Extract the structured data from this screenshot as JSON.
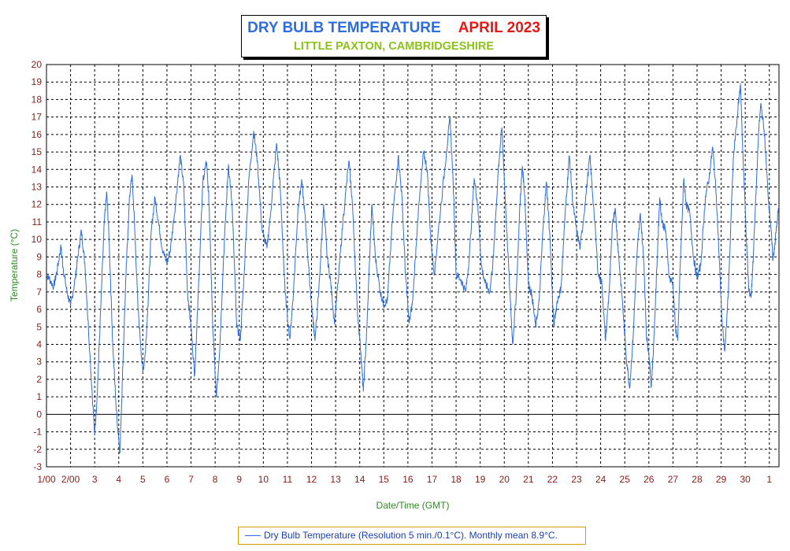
{
  "title": {
    "main": "DRY BULB TEMPERATURE",
    "date": "APRIL 2023",
    "location": "LITTLE PAXTON, CAMBRIDGESHIRE"
  },
  "colors": {
    "series": "#2f6ce0",
    "title_main": "#2f6ce0",
    "title_date": "#e81818",
    "location": "#8cc21a",
    "tick_labels": "#8b1a1a",
    "axis_titles": "#2e8b22",
    "legend_border": "#d4a000"
  },
  "legend": {
    "text": "Dry Bulb Temperature (Resolution 5 min./0.1°C). Monthly mean 8.9°C."
  },
  "chart_data": {
    "type": "line",
    "title": "DRY BULB TEMPERATURE APRIL 2023",
    "subtitle": "LITTLE PAXTON, CAMBRIDGESHIRE",
    "xlabel": "Date/Time (GMT)",
    "ylabel": "Temperature (°C)",
    "ylim": [
      -3,
      20
    ],
    "xlim": [
      1.0,
      31.4
    ],
    "grid": true,
    "y_ticks": [
      -3,
      -2,
      -1,
      0,
      1,
      2,
      3,
      4,
      5,
      6,
      7,
      8,
      9,
      10,
      11,
      12,
      13,
      14,
      15,
      16,
      17,
      18,
      19,
      20
    ],
    "x_ticks": [
      {
        "day": 1,
        "label": "1/00"
      },
      {
        "day": 2,
        "label": "2/00"
      },
      {
        "day": 3,
        "label": "3"
      },
      {
        "day": 4,
        "label": "4"
      },
      {
        "day": 5,
        "label": "5"
      },
      {
        "day": 6,
        "label": "6"
      },
      {
        "day": 7,
        "label": "7"
      },
      {
        "day": 8,
        "label": "8"
      },
      {
        "day": 9,
        "label": "9"
      },
      {
        "day": 10,
        "label": "10"
      },
      {
        "day": 11,
        "label": "11"
      },
      {
        "day": 12,
        "label": "12"
      },
      {
        "day": 13,
        "label": "13"
      },
      {
        "day": 14,
        "label": "14"
      },
      {
        "day": 15,
        "label": "15"
      },
      {
        "day": 16,
        "label": "16"
      },
      {
        "day": 17,
        "label": "17"
      },
      {
        "day": 18,
        "label": "18"
      },
      {
        "day": 19,
        "label": "19"
      },
      {
        "day": 20,
        "label": "20"
      },
      {
        "day": 21,
        "label": "21"
      },
      {
        "day": 22,
        "label": "22"
      },
      {
        "day": 23,
        "label": "23"
      },
      {
        "day": 24,
        "label": "24"
      },
      {
        "day": 25,
        "label": "25"
      },
      {
        "day": 26,
        "label": "26"
      },
      {
        "day": 27,
        "label": "27"
      },
      {
        "day": 28,
        "label": "28"
      },
      {
        "day": 29,
        "label": "29"
      },
      {
        "day": 30,
        "label": "30"
      },
      {
        "day": 31,
        "label": "1"
      }
    ],
    "series": [
      {
        "name": "Dry Bulb Temperature (Resolution 5 min./0.1°C). Monthly mean 8.9°C.",
        "color": "#2f6ce0",
        "points": [
          [
            1.0,
            8.0
          ],
          [
            1.1,
            7.8
          ],
          [
            1.3,
            7.3
          ],
          [
            1.45,
            8.3
          ],
          [
            1.6,
            9.6
          ],
          [
            1.7,
            8.3
          ],
          [
            1.85,
            7.0
          ],
          [
            2.0,
            6.2
          ],
          [
            2.2,
            7.8
          ],
          [
            2.3,
            9.0
          ],
          [
            2.45,
            10.5
          ],
          [
            2.6,
            8.5
          ],
          [
            2.8,
            3.5
          ],
          [
            3.0,
            -1.2
          ],
          [
            3.1,
            1.0
          ],
          [
            3.25,
            6.0
          ],
          [
            3.4,
            11.0
          ],
          [
            3.5,
            12.7
          ],
          [
            3.6,
            10.0
          ],
          [
            3.75,
            4.0
          ],
          [
            3.9,
            0.2
          ],
          [
            4.05,
            -2.2
          ],
          [
            4.15,
            2.0
          ],
          [
            4.3,
            8.0
          ],
          [
            4.45,
            12.5
          ],
          [
            4.55,
            13.7
          ],
          [
            4.65,
            11.0
          ],
          [
            4.8,
            6.0
          ],
          [
            5.0,
            2.4
          ],
          [
            5.1,
            3.5
          ],
          [
            5.2,
            6.0
          ],
          [
            5.35,
            10.5
          ],
          [
            5.5,
            12.4
          ],
          [
            5.65,
            11.0
          ],
          [
            5.8,
            9.5
          ],
          [
            6.0,
            8.6
          ],
          [
            6.15,
            9.5
          ],
          [
            6.35,
            12.0
          ],
          [
            6.55,
            14.8
          ],
          [
            6.7,
            13.0
          ],
          [
            6.85,
            7.0
          ],
          [
            7.0,
            5.0
          ],
          [
            7.15,
            2.2
          ],
          [
            7.3,
            7.0
          ],
          [
            7.5,
            13.5
          ],
          [
            7.65,
            14.4
          ],
          [
            7.75,
            12.0
          ],
          [
            7.9,
            5.0
          ],
          [
            8.05,
            1.0
          ],
          [
            8.2,
            4.0
          ],
          [
            8.35,
            9.0
          ],
          [
            8.55,
            14.3
          ],
          [
            8.7,
            12.0
          ],
          [
            8.9,
            5.0
          ],
          [
            9.05,
            4.3
          ],
          [
            9.2,
            8.0
          ],
          [
            9.4,
            13.5
          ],
          [
            9.6,
            16.2
          ],
          [
            9.75,
            14.5
          ],
          [
            9.95,
            10.5
          ],
          [
            10.15,
            9.5
          ],
          [
            10.3,
            11.5
          ],
          [
            10.55,
            15.5
          ],
          [
            10.7,
            13.0
          ],
          [
            10.9,
            7.0
          ],
          [
            11.1,
            4.3
          ],
          [
            11.25,
            7.0
          ],
          [
            11.45,
            12.0
          ],
          [
            11.6,
            13.3
          ],
          [
            11.75,
            11.0
          ],
          [
            11.9,
            8.0
          ],
          [
            12.05,
            5.5
          ],
          [
            12.15,
            4.3
          ],
          [
            12.3,
            7.0
          ],
          [
            12.5,
            12.0
          ],
          [
            12.65,
            9.0
          ],
          [
            12.8,
            7.5
          ],
          [
            12.95,
            5.2
          ],
          [
            13.1,
            7.5
          ],
          [
            13.3,
            11.0
          ],
          [
            13.55,
            14.5
          ],
          [
            13.7,
            12.0
          ],
          [
            13.9,
            6.0
          ],
          [
            14.05,
            3.5
          ],
          [
            14.15,
            1.3
          ],
          [
            14.3,
            5.0
          ],
          [
            14.5,
            12.0
          ],
          [
            14.65,
            9.0
          ],
          [
            14.85,
            7.0
          ],
          [
            15.0,
            6.3
          ],
          [
            15.15,
            6.5
          ],
          [
            15.35,
            11.0
          ],
          [
            15.6,
            14.8
          ],
          [
            15.75,
            12.5
          ],
          [
            15.9,
            8.0
          ],
          [
            16.05,
            5.2
          ],
          [
            16.2,
            6.5
          ],
          [
            16.4,
            11.0
          ],
          [
            16.65,
            15.0
          ],
          [
            16.8,
            14.0
          ],
          [
            16.95,
            10.0
          ],
          [
            17.1,
            8.0
          ],
          [
            17.3,
            11.0
          ],
          [
            17.6,
            15.0
          ],
          [
            17.75,
            17.0
          ],
          [
            17.9,
            12.5
          ],
          [
            18.0,
            8.0
          ],
          [
            18.2,
            7.7
          ],
          [
            18.4,
            7.0
          ],
          [
            18.55,
            9.0
          ],
          [
            18.75,
            13.5
          ],
          [
            18.9,
            12.0
          ],
          [
            19.05,
            8.5
          ],
          [
            19.2,
            7.5
          ],
          [
            19.4,
            7.0
          ],
          [
            19.55,
            9.0
          ],
          [
            19.75,
            14.0
          ],
          [
            19.9,
            16.4
          ],
          [
            20.05,
            12.0
          ],
          [
            20.25,
            6.5
          ],
          [
            20.35,
            4.0
          ],
          [
            20.5,
            7.0
          ],
          [
            20.65,
            12.0
          ],
          [
            20.75,
            14.2
          ],
          [
            20.85,
            12.5
          ],
          [
            21.0,
            7.5
          ],
          [
            21.15,
            6.8
          ],
          [
            21.3,
            5.0
          ],
          [
            21.45,
            6.5
          ],
          [
            21.6,
            10.5
          ],
          [
            21.75,
            13.3
          ],
          [
            21.9,
            10.0
          ],
          [
            22.05,
            5.0
          ],
          [
            22.2,
            6.5
          ],
          [
            22.35,
            7.2
          ],
          [
            22.55,
            12.0
          ],
          [
            22.7,
            14.8
          ],
          [
            22.85,
            12.0
          ],
          [
            23.0,
            10.5
          ],
          [
            23.15,
            9.5
          ],
          [
            23.35,
            12.0
          ],
          [
            23.55,
            14.8
          ],
          [
            23.7,
            12.0
          ],
          [
            23.9,
            8.0
          ],
          [
            24.05,
            7.5
          ],
          [
            24.2,
            4.2
          ],
          [
            24.35,
            7.0
          ],
          [
            24.5,
            11.0
          ],
          [
            24.6,
            11.8
          ],
          [
            24.75,
            9.0
          ],
          [
            24.9,
            6.5
          ],
          [
            25.05,
            3.5
          ],
          [
            25.2,
            1.5
          ],
          [
            25.35,
            4.5
          ],
          [
            25.5,
            9.0
          ],
          [
            25.65,
            11.5
          ],
          [
            25.8,
            8.5
          ],
          [
            25.9,
            4.5
          ],
          [
            26.0,
            3.5
          ],
          [
            26.1,
            1.6
          ],
          [
            26.2,
            4.0
          ],
          [
            26.35,
            9.0
          ],
          [
            26.45,
            12.4
          ],
          [
            26.55,
            11.0
          ],
          [
            26.7,
            10.5
          ],
          [
            26.85,
            7.8
          ],
          [
            27.0,
            7.5
          ],
          [
            27.1,
            5.0
          ],
          [
            27.2,
            4.2
          ],
          [
            27.3,
            8.5
          ],
          [
            27.45,
            13.5
          ],
          [
            27.55,
            12.0
          ],
          [
            27.7,
            11.5
          ],
          [
            27.85,
            9.0
          ],
          [
            28.0,
            7.8
          ],
          [
            28.15,
            8.5
          ],
          [
            28.35,
            12.5
          ],
          [
            28.5,
            13.5
          ],
          [
            28.65,
            15.3
          ],
          [
            28.8,
            12.5
          ],
          [
            28.95,
            8.0
          ],
          [
            29.05,
            5.0
          ],
          [
            29.15,
            3.6
          ],
          [
            29.3,
            7.0
          ],
          [
            29.5,
            14.5
          ],
          [
            29.7,
            17.5
          ],
          [
            29.8,
            18.9
          ],
          [
            29.9,
            15.0
          ],
          [
            30.05,
            10.0
          ],
          [
            30.15,
            7.0
          ],
          [
            30.25,
            6.8
          ],
          [
            30.35,
            9.5
          ],
          [
            30.55,
            16.0
          ],
          [
            30.65,
            17.8
          ],
          [
            30.8,
            16.0
          ],
          [
            30.95,
            12.5
          ],
          [
            31.05,
            11.0
          ],
          [
            31.15,
            8.8
          ],
          [
            31.25,
            10.0
          ],
          [
            31.38,
            11.8
          ]
        ]
      }
    ]
  }
}
